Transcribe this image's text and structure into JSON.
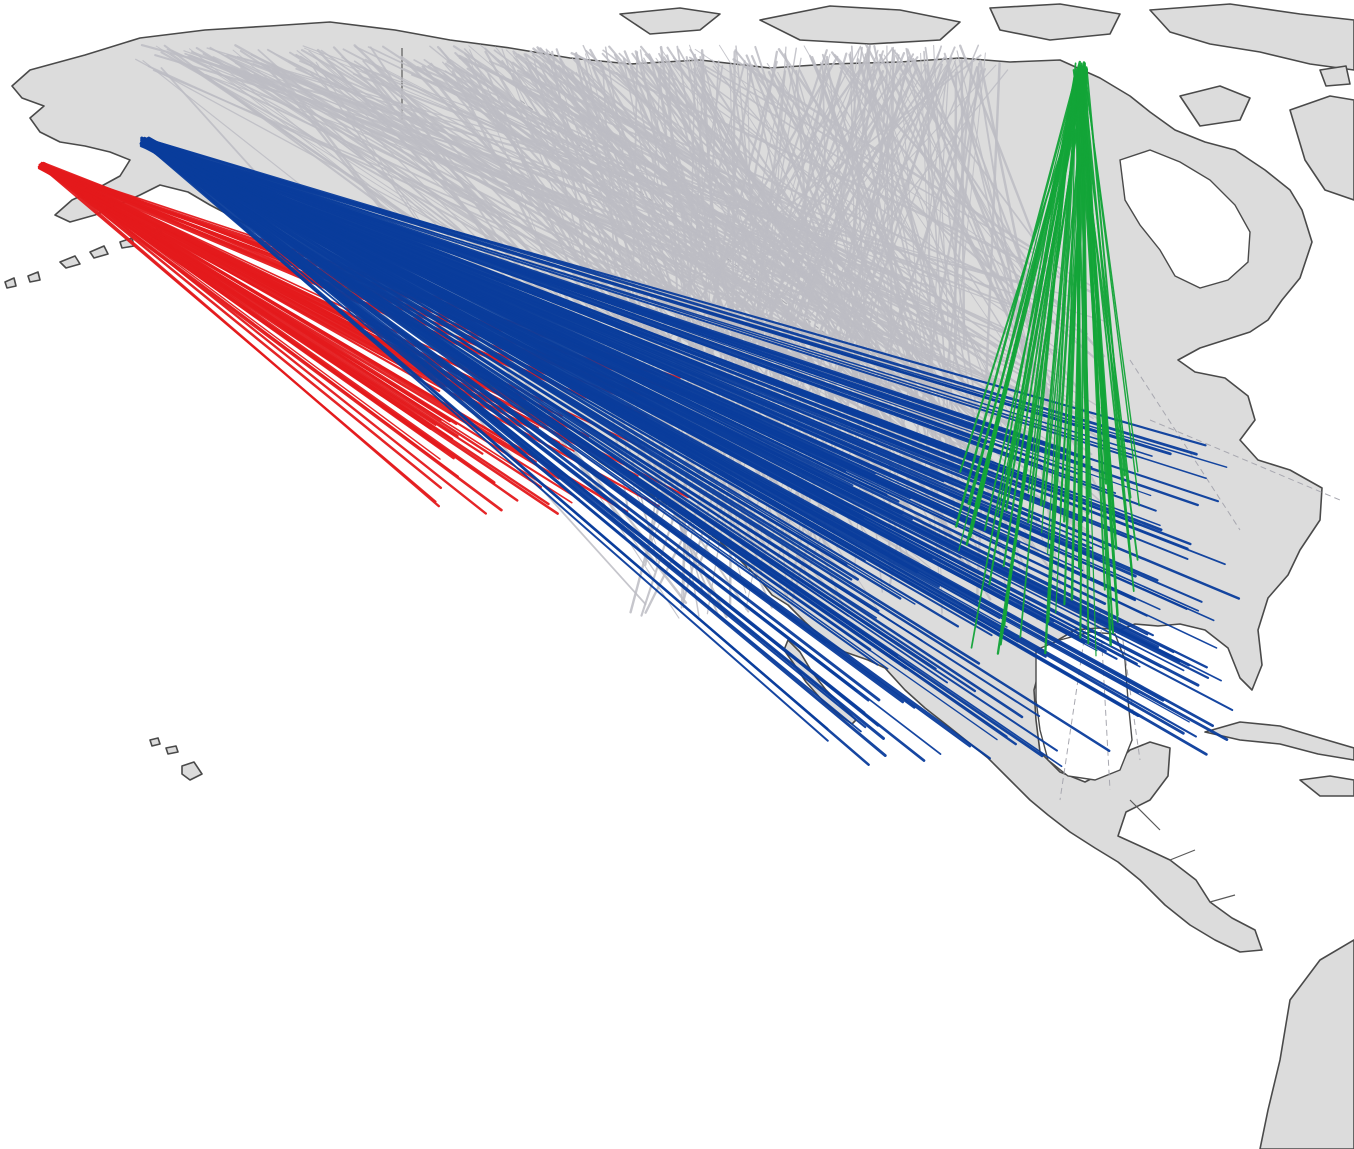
{
  "map": {
    "colors": {
      "land": "#dcdcdc",
      "coast": "#4a4a4a",
      "ocean": "#ffffff",
      "grey_routes": "#bdbdc4",
      "red_routes": "#e41a1c",
      "blue_routes": "#0a3d9c",
      "green_routes": "#13a538"
    },
    "route_groups": [
      {
        "id": "grey",
        "color": "#bdbdc4",
        "count": 420
      },
      {
        "id": "red",
        "color": "#e41a1c",
        "count": 70
      },
      {
        "id": "blue",
        "color": "#0a3d9c",
        "count": 180
      },
      {
        "id": "green",
        "color": "#13a538",
        "count": 60
      }
    ]
  }
}
